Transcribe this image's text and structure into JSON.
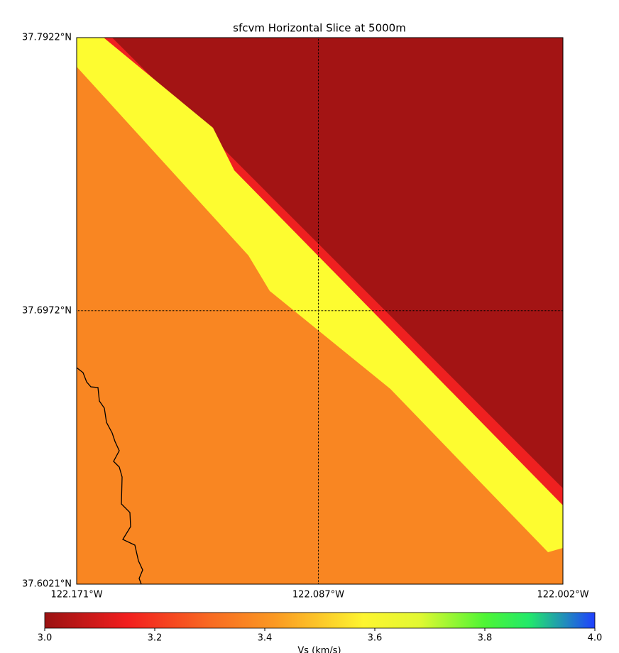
{
  "chart_data": {
    "type": "map",
    "title": "sfcvm Horizontal Slice at 5000m",
    "xlim": [
      -122.171,
      -122.002
    ],
    "ylim": [
      37.6021,
      37.7922
    ],
    "xticks": [
      {
        "value": -122.171,
        "label": "122.171°W"
      },
      {
        "value": -122.087,
        "label": "122.087°W"
      },
      {
        "value": -122.002,
        "label": "122.002°W"
      }
    ],
    "yticks": [
      {
        "value": 37.6021,
        "label": "37.6021°N"
      },
      {
        "value": 37.6972,
        "label": "37.6972°N"
      },
      {
        "value": 37.7922,
        "label": "37.7922°N"
      }
    ],
    "grid": true,
    "colorbar": {
      "label": "Vs (km/s)",
      "lim": [
        3.0,
        4.0
      ],
      "ticks": [
        {
          "value": 3.0,
          "label": "3.0"
        },
        3.2,
        3.4,
        3.6,
        3.8,
        {
          "value": 4.0,
          "label": "4.0"
        }
      ]
    }
  }
}
